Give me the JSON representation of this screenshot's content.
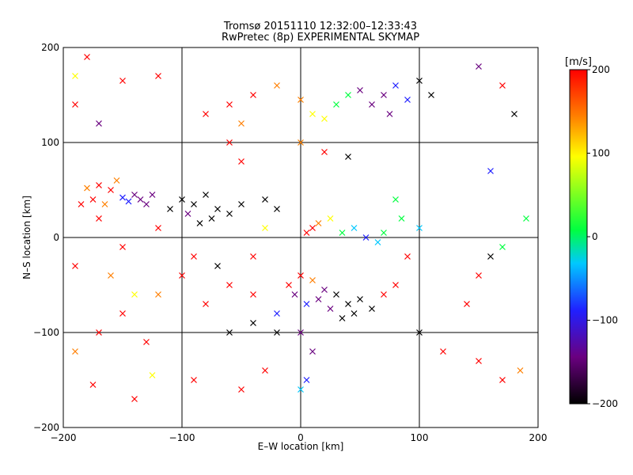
{
  "chart_data": {
    "type": "scatter",
    "title": "Tromsø 20151110 12:32:00–12:33:43",
    "subtitle": "RwPretec (8p) EXPERIMENTAL SKYMAP",
    "xlabel": "E–W location [km]",
    "ylabel": "N–S location [km]",
    "xlim": [
      -200,
      200
    ],
    "ylim": [
      -200,
      200
    ],
    "xticks": [
      -200,
      -100,
      0,
      100,
      200
    ],
    "yticks": [
      -200,
      -100,
      0,
      100,
      200
    ],
    "grid": true,
    "colorbar": {
      "label": "[m/s]",
      "min": -200,
      "max": 200,
      "ticks": [
        200,
        100,
        0,
        -100,
        -200
      ],
      "colormap": [
        "#000000",
        "#6a0080",
        "#2020ff",
        "#00c8ff",
        "#00ff40",
        "#ffff00",
        "#ff8000",
        "#ff0000"
      ]
    },
    "marker_types": [
      "cross",
      "dot"
    ],
    "points": [
      {
        "x": -135,
        "y": 40,
        "v": -130,
        "m": "cross"
      },
      {
        "x": -140,
        "y": 45,
        "v": -120,
        "m": "cross"
      },
      {
        "x": -130,
        "y": 35,
        "v": -140,
        "m": "cross"
      },
      {
        "x": -145,
        "y": 38,
        "v": -110,
        "m": "cross"
      },
      {
        "x": -150,
        "y": 42,
        "v": -100,
        "m": "cross"
      },
      {
        "x": -125,
        "y": 45,
        "v": -150,
        "m": "cross"
      },
      {
        "x": -160,
        "y": 50,
        "v": 180,
        "m": "cross"
      },
      {
        "x": -170,
        "y": 55,
        "v": 190,
        "m": "cross"
      },
      {
        "x": -180,
        "y": 52,
        "v": 160,
        "m": "cross"
      },
      {
        "x": -175,
        "y": 40,
        "v": 200,
        "m": "cross"
      },
      {
        "x": -165,
        "y": 35,
        "v": 170,
        "m": "cross"
      },
      {
        "x": -155,
        "y": 60,
        "v": 150,
        "m": "cross"
      },
      {
        "x": -100,
        "y": 40,
        "v": -200,
        "m": "cross"
      },
      {
        "x": -90,
        "y": 35,
        "v": -195,
        "m": "cross"
      },
      {
        "x": -80,
        "y": 45,
        "v": -190,
        "m": "cross"
      },
      {
        "x": -70,
        "y": 30,
        "v": -200,
        "m": "cross"
      },
      {
        "x": -60,
        "y": 25,
        "v": -185,
        "m": "cross"
      },
      {
        "x": -75,
        "y": 20,
        "v": -195,
        "m": "cross"
      },
      {
        "x": -50,
        "y": 35,
        "v": -200,
        "m": "cross"
      },
      {
        "x": -110,
        "y": 30,
        "v": -180,
        "m": "cross"
      },
      {
        "x": -95,
        "y": 25,
        "v": -170,
        "m": "cross"
      },
      {
        "x": -85,
        "y": 15,
        "v": -190,
        "m": "cross"
      },
      {
        "x": -30,
        "y": 40,
        "v": -200,
        "m": "cross"
      },
      {
        "x": -20,
        "y": 30,
        "v": -190,
        "m": "cross"
      },
      {
        "x": 70,
        "y": 150,
        "v": -120,
        "m": "cross"
      },
      {
        "x": 80,
        "y": 160,
        "v": -110,
        "m": "cross"
      },
      {
        "x": 60,
        "y": 140,
        "v": -130,
        "m": "cross"
      },
      {
        "x": 90,
        "y": 145,
        "v": -100,
        "m": "cross"
      },
      {
        "x": 100,
        "y": 165,
        "v": -200,
        "m": "cross"
      },
      {
        "x": 110,
        "y": 150,
        "v": -190,
        "m": "cross"
      },
      {
        "x": 50,
        "y": 155,
        "v": -140,
        "m": "cross"
      },
      {
        "x": 75,
        "y": 130,
        "v": -160,
        "m": "cross"
      },
      {
        "x": -40,
        "y": 150,
        "v": 190,
        "m": "cross"
      },
      {
        "x": -60,
        "y": 140,
        "v": 180,
        "m": "cross"
      },
      {
        "x": -80,
        "y": 130,
        "v": 200,
        "m": "cross"
      },
      {
        "x": -50,
        "y": 120,
        "v": 170,
        "m": "cross"
      },
      {
        "x": -20,
        "y": 160,
        "v": 150,
        "m": "cross"
      },
      {
        "x": 0,
        "y": 145,
        "v": 130,
        "m": "cross"
      },
      {
        "x": 10,
        "y": 130,
        "v": 90,
        "m": "cross"
      },
      {
        "x": 20,
        "y": 125,
        "v": 60,
        "m": "cross"
      },
      {
        "x": 30,
        "y": 140,
        "v": 40,
        "m": "cross"
      },
      {
        "x": 40,
        "y": 150,
        "v": 10,
        "m": "cross"
      },
      {
        "x": 5,
        "y": 5,
        "v": 200,
        "m": "cross"
      },
      {
        "x": 10,
        "y": 10,
        "v": 190,
        "m": "cross"
      },
      {
        "x": 15,
        "y": 15,
        "v": 150,
        "m": "cross"
      },
      {
        "x": 25,
        "y": 20,
        "v": 80,
        "m": "cross"
      },
      {
        "x": 35,
        "y": 5,
        "v": 20,
        "m": "cross"
      },
      {
        "x": 45,
        "y": 10,
        "v": -20,
        "m": "cross"
      },
      {
        "x": 55,
        "y": 0,
        "v": -60,
        "m": "cross"
      },
      {
        "x": 65,
        "y": -5,
        "v": -40,
        "m": "cross"
      },
      {
        "x": 70,
        "y": 5,
        "v": 10,
        "m": "cross"
      },
      {
        "x": 0,
        "y": -40,
        "v": 180,
        "m": "cross"
      },
      {
        "x": -10,
        "y": -50,
        "v": 190,
        "m": "cross"
      },
      {
        "x": 10,
        "y": -45,
        "v": 160,
        "m": "cross"
      },
      {
        "x": 20,
        "y": -55,
        "v": -150,
        "m": "cross"
      },
      {
        "x": 30,
        "y": -60,
        "v": -190,
        "m": "cross"
      },
      {
        "x": 40,
        "y": -70,
        "v": -200,
        "m": "cross"
      },
      {
        "x": 50,
        "y": -65,
        "v": -195,
        "m": "cross"
      },
      {
        "x": 60,
        "y": -75,
        "v": -200,
        "m": "cross"
      },
      {
        "x": 45,
        "y": -80,
        "v": -185,
        "m": "cross"
      },
      {
        "x": 35,
        "y": -85,
        "v": -190,
        "m": "cross"
      },
      {
        "x": 25,
        "y": -75,
        "v": -170,
        "m": "cross"
      },
      {
        "x": 15,
        "y": -65,
        "v": -120,
        "m": "cross"
      },
      {
        "x": 5,
        "y": -70,
        "v": -110,
        "m": "cross"
      },
      {
        "x": -5,
        "y": -60,
        "v": -130,
        "m": "cross"
      },
      {
        "x": -20,
        "y": -80,
        "v": -100,
        "m": "cross"
      },
      {
        "x": -40,
        "y": -60,
        "v": 200,
        "m": "cross"
      },
      {
        "x": -60,
        "y": -50,
        "v": 190,
        "m": "cross"
      },
      {
        "x": -80,
        "y": -70,
        "v": 180,
        "m": "cross"
      },
      {
        "x": -100,
        "y": -40,
        "v": 200,
        "m": "cross"
      },
      {
        "x": -120,
        "y": -60,
        "v": 170,
        "m": "cross"
      },
      {
        "x": -150,
        "y": -80,
        "v": 200,
        "m": "cross"
      },
      {
        "x": -170,
        "y": -100,
        "v": 190,
        "m": "cross"
      },
      {
        "x": -60,
        "y": -100,
        "v": -200,
        "m": "cross"
      },
      {
        "x": -40,
        "y": -90,
        "v": -190,
        "m": "cross"
      },
      {
        "x": -20,
        "y": -100,
        "v": -180,
        "m": "cross"
      },
      {
        "x": 0,
        "y": -160,
        "v": -40,
        "m": "cross"
      },
      {
        "x": 5,
        "y": -150,
        "v": -100,
        "m": "cross"
      },
      {
        "x": 0,
        "y": -100,
        "v": -150,
        "m": "cross"
      },
      {
        "x": 10,
        "y": -120,
        "v": -130,
        "m": "cross"
      },
      {
        "x": -30,
        "y": -140,
        "v": 180,
        "m": "cross"
      },
      {
        "x": -50,
        "y": -160,
        "v": 200,
        "m": "cross"
      },
      {
        "x": -90,
        "y": -150,
        "v": 190,
        "m": "cross"
      },
      {
        "x": -140,
        "y": -170,
        "v": 200,
        "m": "cross"
      },
      {
        "x": -190,
        "y": -120,
        "v": 170,
        "m": "cross"
      },
      {
        "x": 150,
        "y": 180,
        "v": -120,
        "m": "cross"
      },
      {
        "x": 170,
        "y": 160,
        "v": 200,
        "m": "cross"
      },
      {
        "x": 180,
        "y": 130,
        "v": -200,
        "m": "cross"
      },
      {
        "x": 160,
        "y": 70,
        "v": -110,
        "m": "cross"
      },
      {
        "x": 190,
        "y": 20,
        "v": 30,
        "m": "cross"
      },
      {
        "x": 170,
        "y": -10,
        "v": 50,
        "m": "cross"
      },
      {
        "x": 160,
        "y": -20,
        "v": -200,
        "m": "cross"
      },
      {
        "x": 150,
        "y": -40,
        "v": 190,
        "m": "cross"
      },
      {
        "x": 140,
        "y": -70,
        "v": 180,
        "m": "cross"
      },
      {
        "x": 100,
        "y": -100,
        "v": -190,
        "m": "cross"
      },
      {
        "x": 120,
        "y": -120,
        "v": 190,
        "m": "cross"
      },
      {
        "x": 150,
        "y": -130,
        "v": 200,
        "m": "cross"
      },
      {
        "x": 185,
        "y": -140,
        "v": 170,
        "m": "cross"
      },
      {
        "x": 170,
        "y": -150,
        "v": 200,
        "m": "cross"
      },
      {
        "x": -190,
        "y": 170,
        "v": 80,
        "m": "cross"
      },
      {
        "x": -180,
        "y": 190,
        "v": 200,
        "m": "cross"
      },
      {
        "x": -150,
        "y": 165,
        "v": 190,
        "m": "cross"
      },
      {
        "x": -120,
        "y": 170,
        "v": 200,
        "m": "cross"
      },
      {
        "x": -170,
        "y": 120,
        "v": -130,
        "m": "cross"
      },
      {
        "x": -190,
        "y": 140,
        "v": 190,
        "m": "cross"
      },
      {
        "x": -185,
        "y": 35,
        "v": 200,
        "m": "cross"
      },
      {
        "x": -170,
        "y": 20,
        "v": 190,
        "m": "cross"
      },
      {
        "x": -150,
        "y": -10,
        "v": 180,
        "m": "cross"
      },
      {
        "x": -120,
        "y": 10,
        "v": 200,
        "m": "cross"
      },
      {
        "x": -190,
        "y": -30,
        "v": 200,
        "m": "cross"
      },
      {
        "x": -160,
        "y": -40,
        "v": 170,
        "m": "cross"
      },
      {
        "x": -140,
        "y": -60,
        "v": 60,
        "m": "cross"
      },
      {
        "x": -130,
        "y": -110,
        "v": 190,
        "m": "cross"
      },
      {
        "x": -125,
        "y": -145,
        "v": 90,
        "m": "cross"
      },
      {
        "x": -175,
        "y": -155,
        "v": 180,
        "m": "cross"
      },
      {
        "x": 0,
        "y": 100,
        "v": 150,
        "m": "cross"
      },
      {
        "x": 20,
        "y": 90,
        "v": 190,
        "m": "cross"
      },
      {
        "x": 40,
        "y": 85,
        "v": -200,
        "m": "cross"
      },
      {
        "x": -50,
        "y": 80,
        "v": 180,
        "m": "cross"
      },
      {
        "x": -60,
        "y": 100,
        "v": 200,
        "m": "cross"
      },
      {
        "x": 80,
        "y": 40,
        "v": 40,
        "m": "cross"
      },
      {
        "x": 85,
        "y": 20,
        "v": 20,
        "m": "cross"
      },
      {
        "x": 100,
        "y": 10,
        "v": -40,
        "m": "cross"
      },
      {
        "x": 90,
        "y": -20,
        "v": 190,
        "m": "cross"
      },
      {
        "x": 80,
        "y": -50,
        "v": 200,
        "m": "cross"
      },
      {
        "x": 70,
        "y": -60,
        "v": 190,
        "m": "cross"
      },
      {
        "x": -30,
        "y": 10,
        "v": 60,
        "m": "cross"
      },
      {
        "x": -40,
        "y": -20,
        "v": 190,
        "m": "cross"
      },
      {
        "x": -70,
        "y": -30,
        "v": -200,
        "m": "cross"
      },
      {
        "x": -90,
        "y": -20,
        "v": 180,
        "m": "cross"
      }
    ]
  }
}
